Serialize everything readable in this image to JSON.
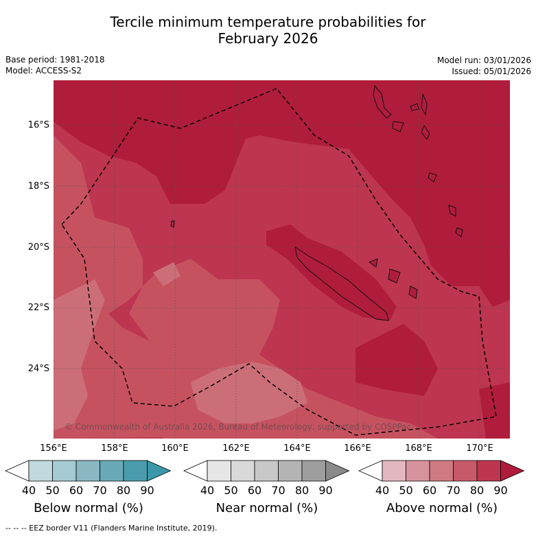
{
  "title_line1": "Tercile minimum temperature probabilities for",
  "title_line2": "February 2026",
  "base_period": "Base period: 1981-2018",
  "model": "Model: ACCESS-S2",
  "model_run": "Model run: 03/01/2026",
  "issued": "Issued: 05/01/2026",
  "map": {
    "lat_labels": [
      "16°S",
      "18°S",
      "20°S",
      "22°S",
      "24°S"
    ],
    "lon_labels": [
      "156°E",
      "158°E",
      "160°E",
      "162°E",
      "164°E",
      "166°E",
      "168°E",
      "170°E"
    ],
    "copyright": "© Commonwealth of Australia 2026, Bureau of Meteorology, supported by COSPPac",
    "fill_colors": {
      "above_90": "#b01c3b",
      "above_80": "#bd3550",
      "above_70": "#c65260",
      "above_60": "#cc6e78"
    }
  },
  "legends": [
    {
      "title": "Below normal (%)",
      "ticks": [
        "40",
        "50",
        "60",
        "70",
        "80",
        "90"
      ],
      "colors": [
        "#c2d9df",
        "#a6cad1",
        "#89b8c3",
        "#6aa9b7",
        "#4a9cad",
        "#3b97a9"
      ]
    },
    {
      "title": "Near normal (%)",
      "ticks": [
        "40",
        "50",
        "60",
        "70",
        "80",
        "90"
      ],
      "colors": [
        "#e6e6e6",
        "#d9d9d9",
        "#c8c8c8",
        "#b4b4b4",
        "#9e9e9e",
        "#8a8a8a"
      ]
    },
    {
      "title": "Above normal (%)",
      "ticks": [
        "40",
        "50",
        "60",
        "70",
        "80",
        "90"
      ],
      "colors": [
        "#e2b7bf",
        "#d7939d",
        "#cf7983",
        "#c75a6a",
        "#bd3550",
        "#b01c3b"
      ]
    }
  ],
  "footer": "--  --  -- EEZ border V11 (Flanders Marine Institute, 2019)."
}
